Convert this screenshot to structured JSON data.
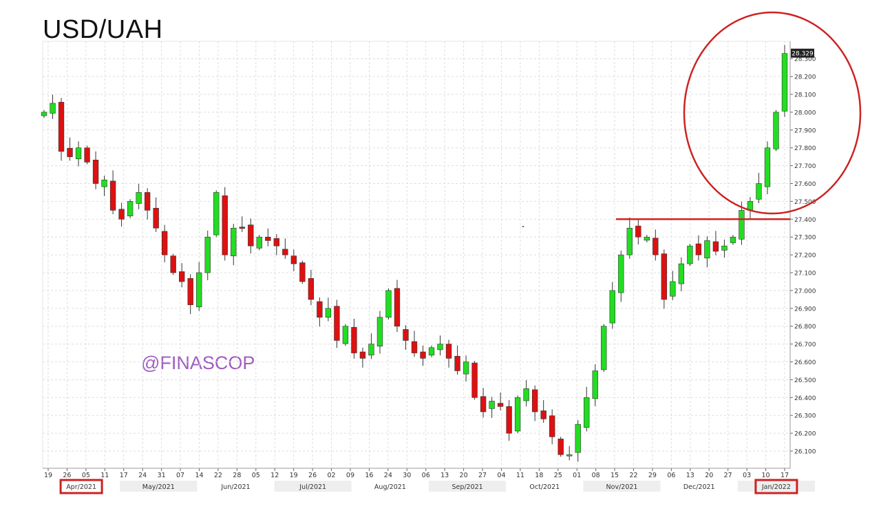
{
  "title": "USD/UAH",
  "watermark": "@FINASCOP",
  "last_price_label": "28.329",
  "colors": {
    "up": "#22dd22",
    "down": "#dd1111",
    "annotation": "#cc2222",
    "grid": "#dddddd",
    "axis_text": "#333333"
  },
  "chart_data": {
    "type": "candlestick",
    "title": "USD/UAH",
    "ylim": [
      26.0,
      28.4
    ],
    "y_ticks": [
      "28.300",
      "28.200",
      "28.100",
      "28.000",
      "27.900",
      "27.800",
      "27.700",
      "27.600",
      "27.500",
      "27.400",
      "27.300",
      "27.200",
      "27.100",
      "27.000",
      "26.900",
      "26.800",
      "26.700",
      "26.600",
      "26.500",
      "26.400",
      "26.300",
      "26.200",
      "26.100"
    ],
    "x_ticks": [
      "19",
      "26",
      "05",
      "11",
      "17",
      "24",
      "31",
      "07",
      "14",
      "22",
      "28",
      "05",
      "12",
      "19",
      "26",
      "02",
      "09",
      "16",
      "24",
      "30",
      "06",
      "13",
      "20",
      "27",
      "04",
      "11",
      "18",
      "25",
      "01",
      "08",
      "15",
      "22",
      "29",
      "06",
      "13",
      "20",
      "27",
      "03",
      "10",
      "17"
    ],
    "months": [
      "Apr/2021",
      "May/2021",
      "Jun/2021",
      "Jul/2021",
      "Aug/2021",
      "Sep/2021",
      "Oct/2021",
      "Nov/2021",
      "Dec/2021",
      "Jan/2022"
    ],
    "highlighted_months": [
      "Apr/2021",
      "Jan/2022"
    ],
    "annotations": {
      "resistance_line": {
        "value": 27.4
      },
      "circled_region": "latest rally above 27.400"
    },
    "path": [
      28.0,
      28.05,
      27.78,
      27.75,
      27.8,
      27.72,
      27.6,
      27.62,
      27.45,
      27.4,
      27.5,
      27.55,
      27.45,
      27.35,
      27.2,
      27.1,
      27.05,
      26.92,
      27.1,
      27.3,
      27.55,
      27.2,
      27.35,
      27.35,
      27.25,
      27.3,
      27.28,
      27.25,
      27.2,
      27.15,
      27.05,
      26.95,
      26.85,
      26.9,
      26.72,
      26.8,
      26.65,
      26.62,
      26.7,
      26.85,
      27.0,
      26.8,
      26.72,
      26.65,
      26.62,
      26.68,
      26.7,
      26.62,
      26.55,
      26.6,
      26.4,
      26.32,
      26.38,
      26.35,
      26.2,
      26.4,
      26.45,
      26.32,
      26.28,
      26.18,
      26.08,
      26.08,
      26.25,
      26.4,
      26.55,
      26.8,
      27.0,
      27.2,
      27.35,
      27.3,
      27.3,
      27.2,
      26.95,
      27.05,
      27.15,
      27.25,
      27.2,
      27.28,
      27.22,
      27.25,
      27.3,
      27.45,
      27.5,
      27.6,
      27.8,
      28.0,
      28.329
    ]
  }
}
